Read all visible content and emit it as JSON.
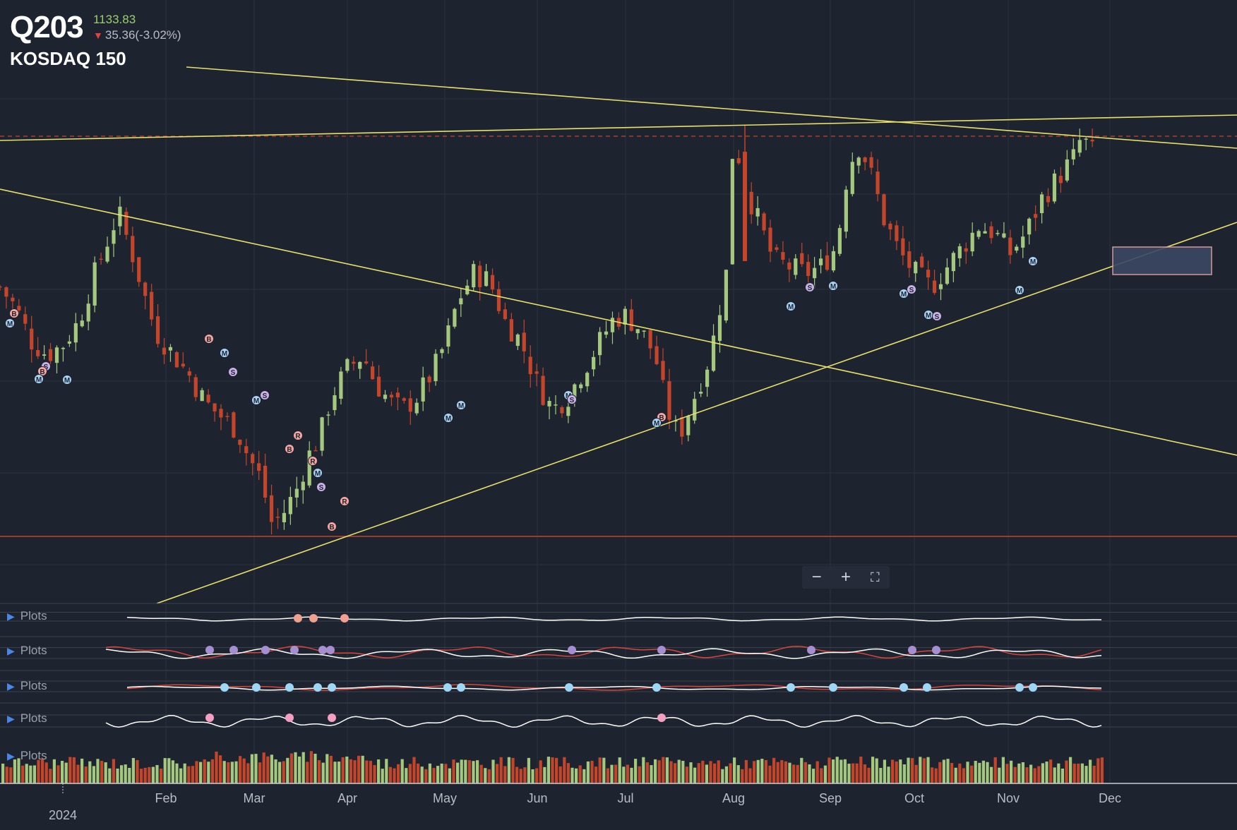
{
  "header": {
    "symbol": "Q203",
    "price": "1133.83",
    "change": "35.36(-3.02%)",
    "name": "KOSDAQ 150"
  },
  "panels": [
    "Plots",
    "Plots",
    "Plots",
    "Plots",
    "Plots"
  ],
  "zoom": {
    "minus": "−",
    "plus": "+",
    "fullscreen": "⛶"
  },
  "x_axis": {
    "year_label": "2024",
    "months": [
      "Feb",
      "Mar",
      "Apr",
      "May",
      "Jun",
      "Jul",
      "Aug",
      "Sep",
      "Oct",
      "Nov",
      "Dec"
    ]
  },
  "colors": {
    "background": "#1e2330",
    "up": "#a4c97e",
    "down": "#c4452a",
    "trendline": "#e8e06a",
    "support": "#c4452a",
    "resistance_dash": "#c4452a"
  },
  "chart_data": {
    "type": "candlestick",
    "series_close": [
      [
        0,
        1080
      ],
      [
        4,
        1065
      ],
      [
        8,
        1040
      ],
      [
        12,
        1030
      ],
      [
        16,
        1038
      ],
      [
        20,
        1055
      ],
      [
        24,
        1090
      ],
      [
        28,
        1120
      ],
      [
        30,
        1135
      ],
      [
        34,
        1100
      ],
      [
        38,
        1060
      ],
      [
        40,
        1045
      ],
      [
        44,
        1030
      ],
      [
        48,
        1015
      ],
      [
        52,
        995
      ],
      [
        56,
        985
      ],
      [
        60,
        975
      ],
      [
        63,
        955
      ],
      [
        66,
        940
      ],
      [
        69,
        905
      ],
      [
        72,
        915
      ],
      [
        75,
        930
      ],
      [
        78,
        955
      ],
      [
        81,
        970
      ],
      [
        84,
        1000
      ],
      [
        88,
        1020
      ],
      [
        92,
        1030
      ],
      [
        95,
        1010
      ],
      [
        99,
        995
      ],
      [
        102,
        990
      ],
      [
        106,
        1000
      ],
      [
        110,
        1020
      ],
      [
        113,
        1040
      ],
      [
        116,
        1070
      ],
      [
        120,
        1090
      ],
      [
        124,
        1085
      ],
      [
        128,
        1055
      ],
      [
        132,
        1040
      ],
      [
        136,
        1010
      ],
      [
        140,
        990
      ],
      [
        144,
        1000
      ],
      [
        148,
        1020
      ],
      [
        152,
        1040
      ],
      [
        155,
        1055
      ],
      [
        158,
        1060
      ],
      [
        162,
        1050
      ],
      [
        166,
        1030
      ],
      [
        169,
        990
      ],
      [
        172,
        970
      ],
      [
        176,
        1000
      ],
      [
        180,
        1030
      ],
      [
        184,
        1090
      ],
      [
        186,
        1200
      ],
      [
        188,
        1160
      ],
      [
        192,
        1130
      ],
      [
        196,
        1100
      ],
      [
        200,
        1095
      ],
      [
        204,
        1090
      ],
      [
        208,
        1095
      ],
      [
        212,
        1110
      ],
      [
        215,
        1170
      ],
      [
        218,
        1185
      ],
      [
        221,
        1160
      ],
      [
        224,
        1130
      ],
      [
        228,
        1105
      ],
      [
        232,
        1090
      ],
      [
        236,
        1080
      ],
      [
        240,
        1095
      ],
      [
        244,
        1110
      ],
      [
        248,
        1125
      ],
      [
        252,
        1120
      ],
      [
        256,
        1105
      ],
      [
        260,
        1120
      ],
      [
        264,
        1145
      ],
      [
        268,
        1160
      ],
      [
        272,
        1175
      ],
      [
        274,
        1190
      ],
      [
        278,
        1175
      ],
      [
        280,
        1180
      ]
    ],
    "horizontal_levels": [
      1198,
      892
    ],
    "volume_present": true
  }
}
